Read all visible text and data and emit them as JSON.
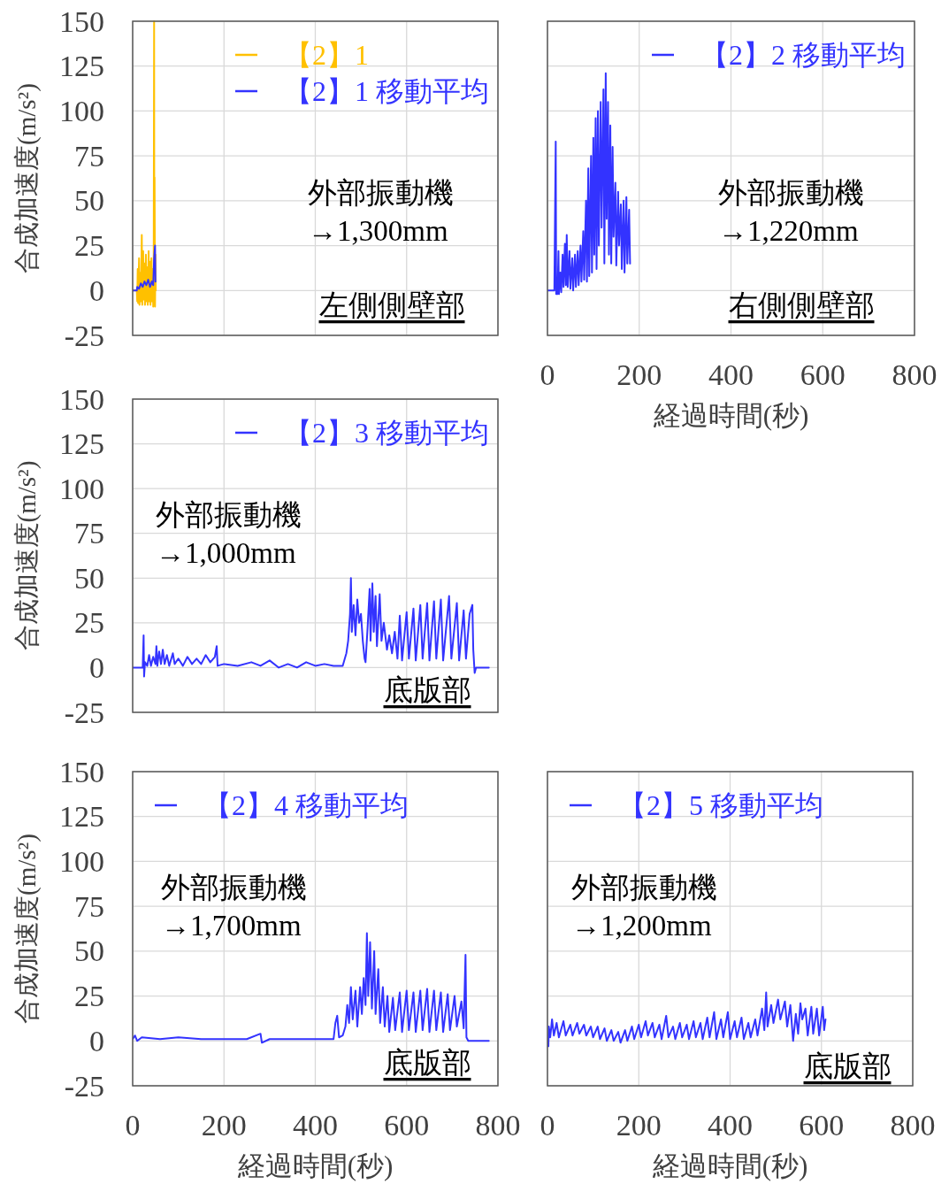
{
  "chart_data": [
    {
      "type": "line",
      "ylabel": "合成加速度(m/s²)",
      "xlim": [
        0,
        800
      ],
      "xticks": [
        0,
        200,
        400,
        600,
        800
      ],
      "ylim": [
        -25,
        150
      ],
      "yticks": [
        -25,
        0,
        25,
        50,
        75,
        100,
        125,
        150
      ],
      "grid": true,
      "legend": "top right",
      "tick_labels": "y",
      "annotations": [
        "外部振動機\n→1,300mm",
        "左側側壁部"
      ],
      "series": [
        {
          "name": "【2】1",
          "color": "#ffc000",
          "x": [
            0,
            9,
            10,
            11,
            12,
            14,
            15,
            17,
            18,
            20,
            21,
            23,
            24,
            26,
            27,
            29,
            30,
            32,
            33,
            35,
            36,
            38,
            39,
            41,
            42,
            44,
            45,
            46,
            47,
            47.5,
            48,
            49,
            50,
            50.5
          ],
          "values": [
            0,
            0,
            -6,
            12,
            -7,
            18,
            -8,
            10,
            -6,
            31,
            -8,
            22,
            -5,
            15,
            -8,
            20,
            -6,
            13,
            -8,
            22,
            -6,
            16,
            -8,
            18,
            -6,
            12,
            -9,
            8,
            150,
            -5,
            63,
            -9,
            20,
            0
          ]
        },
        {
          "name": "【2】1 移動平均",
          "color": "#3333ff",
          "x": [
            0,
            9,
            10,
            14,
            18,
            22,
            26,
            30,
            34,
            38,
            42,
            45,
            47,
            49,
            50
          ],
          "values": [
            0,
            0,
            2,
            1,
            4,
            2,
            5,
            3,
            6,
            2,
            5,
            3,
            18,
            25,
            5
          ]
        }
      ]
    },
    {
      "type": "line",
      "xlabel": "経過時間(秒)",
      "xlim": [
        0,
        800
      ],
      "xticks": [
        0,
        200,
        400,
        600,
        800
      ],
      "ylim": [
        -25,
        150
      ],
      "yticks": [
        -25,
        0,
        25,
        50,
        75,
        100,
        125,
        150
      ],
      "grid": true,
      "legend": "top right",
      "tick_labels": "x",
      "annotations": [
        "外部振動機\n→1,220mm",
        "右側側壁部"
      ],
      "series": [
        {
          "name": "【2】2 移動平均",
          "color": "#3333ff",
          "x": [
            0,
            15,
            18,
            19,
            22,
            24,
            25,
            28,
            30,
            33,
            35,
            38,
            40,
            42,
            44,
            48,
            50,
            54,
            56,
            60,
            62,
            66,
            68,
            72,
            74,
            78,
            80,
            84,
            86,
            89,
            91,
            95,
            97,
            100,
            102,
            105,
            107,
            110,
            112,
            116,
            118,
            122,
            124,
            127,
            129,
            132,
            134,
            137,
            139,
            142,
            144,
            148,
            150,
            154,
            156,
            160,
            162,
            166,
            168,
            172,
            174,
            178,
            180
          ],
          "values": [
            0,
            0,
            83,
            -2,
            -2,
            22,
            -2,
            10,
            -1,
            20,
            2,
            26,
            3,
            31,
            2,
            22,
            1,
            18,
            0,
            20,
            2,
            22,
            3,
            25,
            5,
            33,
            6,
            50,
            5,
            68,
            8,
            75,
            10,
            85,
            20,
            96,
            12,
            100,
            25,
            105,
            35,
            112,
            15,
            121,
            40,
            105,
            20,
            92,
            15,
            80,
            30,
            60,
            14,
            55,
            25,
            48,
            12,
            50,
            10,
            52,
            15,
            45,
            15
          ]
        }
      ]
    },
    {
      "type": "line",
      "ylabel": "合成加速度(m/s²)",
      "xlim": [
        0,
        800
      ],
      "xticks": [
        0,
        200,
        400,
        600,
        800
      ],
      "ylim": [
        -25,
        150
      ],
      "yticks": [
        -25,
        0,
        25,
        50,
        75,
        100,
        125,
        150
      ],
      "grid": true,
      "legend": "top right",
      "tick_labels": "y",
      "annotations": [
        "外部振動機\n→1,000mm",
        "底版部"
      ],
      "series": [
        {
          "name": "【2】3 移動平均",
          "color": "#3333ff",
          "x": [
            0,
            22,
            24,
            25,
            27,
            32,
            36,
            40,
            45,
            50,
            52,
            54,
            58,
            62,
            66,
            70,
            75,
            80,
            88,
            92,
            100,
            110,
            120,
            130,
            140,
            150,
            160,
            170,
            180,
            184,
            186,
            200,
            230,
            260,
            280,
            300,
            320,
            340,
            360,
            380,
            400,
            420,
            440,
            460,
            468,
            472,
            476,
            478,
            480,
            484,
            488,
            492,
            496,
            500,
            504,
            508,
            510,
            514,
            519,
            521,
            525,
            528,
            532,
            535,
            541,
            545,
            550,
            557,
            562,
            568,
            574,
            580,
            585,
            590,
            600,
            605,
            615,
            620,
            630,
            635,
            645,
            650,
            660,
            665,
            675,
            680,
            693,
            698,
            710,
            715,
            725,
            730,
            738,
            744,
            746,
            749,
            752,
            780
          ],
          "values": [
            0,
            0,
            18,
            -5,
            3,
            1,
            7,
            1,
            6,
            2,
            12,
            1,
            9,
            2,
            10,
            2,
            7,
            1,
            8,
            2,
            5,
            1,
            6,
            2,
            5,
            2,
            7,
            3,
            6,
            12,
            1,
            2,
            1,
            3,
            1,
            4,
            0,
            2,
            0,
            3,
            1,
            2,
            1,
            1,
            8,
            15,
            30,
            50,
            20,
            35,
            18,
            38,
            25,
            30,
            15,
            5,
            3,
            20,
            44,
            15,
            47,
            20,
            40,
            12,
            41,
            15,
            25,
            10,
            18,
            8,
            20,
            5,
            29,
            4,
            31,
            5,
            33,
            4,
            35,
            5,
            36,
            4,
            37,
            5,
            38,
            4,
            40,
            5,
            36,
            4,
            32,
            5,
            30,
            35,
            10,
            -3,
            0,
            0
          ]
        }
      ]
    },
    {
      "type": "line",
      "ylabel": "合成加速度(m/s²)",
      "xlabel": "経過時間(秒)",
      "xlim": [
        0,
        800
      ],
      "xticks": [
        0,
        200,
        400,
        600,
        800
      ],
      "ylim": [
        -25,
        150
      ],
      "yticks": [
        -25,
        0,
        25,
        50,
        75,
        100,
        125,
        150
      ],
      "grid": true,
      "legend": "top left",
      "annotations": [
        "外部振動機\n→1,700mm",
        "底版部"
      ],
      "series": [
        {
          "name": "【2】4 移動平均",
          "color": "#3333ff",
          "x": [
            0,
            5,
            10,
            20,
            60,
            100,
            150,
            200,
            250,
            280,
            283,
            300,
            350,
            400,
            440,
            444,
            448,
            452,
            460,
            466,
            470,
            474,
            478,
            482,
            488,
            492,
            498,
            502,
            506,
            510,
            513,
            516,
            520,
            524,
            529,
            532,
            538,
            542,
            548,
            552,
            558,
            562,
            570,
            575,
            585,
            590,
            600,
            605,
            615,
            620,
            630,
            635,
            645,
            650,
            660,
            665,
            675,
            680,
            690,
            695,
            705,
            710,
            720,
            725,
            729,
            731,
            735,
            780
          ],
          "values": [
            1,
            3,
            0,
            2,
            1,
            2,
            1,
            1,
            1,
            4,
            -1,
            1,
            1,
            1,
            1,
            10,
            14,
            2,
            3,
            8,
            20,
            10,
            30,
            12,
            28,
            8,
            30,
            15,
            35,
            20,
            60,
            25,
            55,
            18,
            50,
            15,
            40,
            10,
            30,
            8,
            25,
            5,
            24,
            6,
            27,
            5,
            28,
            6,
            27,
            5,
            28,
            6,
            29,
            5,
            28,
            6,
            27,
            5,
            26,
            6,
            25,
            8,
            22,
            7,
            48,
            2,
            0,
            0
          ]
        }
      ]
    },
    {
      "type": "line",
      "xlabel": "経過時間(秒)",
      "xlim": [
        0,
        800
      ],
      "xticks": [
        0,
        200,
        400,
        600,
        800
      ],
      "ylim": [
        -25,
        150
      ],
      "yticks": [
        -25,
        0,
        25,
        50,
        75,
        100,
        125,
        150
      ],
      "grid": true,
      "legend": "top left",
      "tick_labels": "x",
      "annotations": [
        "外部振動機\n→1,200mm",
        "底版部"
      ],
      "series": [
        {
          "name": "【2】5 移動平均",
          "color": "#3333ff",
          "x": [
            2,
            3,
            6,
            10,
            14,
            20,
            25,
            35,
            40,
            50,
            55,
            65,
            70,
            80,
            85,
            95,
            100,
            110,
            115,
            125,
            130,
            140,
            145,
            155,
            160,
            170,
            175,
            185,
            190,
            200,
            205,
            215,
            220,
            230,
            235,
            245,
            250,
            260,
            265,
            275,
            280,
            290,
            295,
            305,
            310,
            320,
            325,
            335,
            340,
            350,
            355,
            365,
            370,
            380,
            385,
            395,
            400,
            410,
            415,
            425,
            430,
            440,
            445,
            455,
            460,
            470,
            475,
            479,
            482,
            490,
            495,
            505,
            510,
            520,
            525,
            532,
            538,
            544,
            549,
            554,
            558,
            565,
            570,
            578,
            582,
            590,
            595,
            603,
            606,
            609
          ],
          "values": [
            -3,
            8,
            2,
            12,
            3,
            10,
            2,
            11,
            3,
            9,
            3,
            10,
            4,
            9,
            3,
            8,
            2,
            8,
            1,
            7,
            0,
            6,
            0,
            5,
            -1,
            6,
            0,
            8,
            1,
            9,
            2,
            11,
            3,
            10,
            2,
            9,
            1,
            14,
            2,
            8,
            1,
            10,
            2,
            9,
            1,
            11,
            2,
            10,
            1,
            13,
            2,
            16,
            1,
            12,
            2,
            16,
            1,
            11,
            2,
            13,
            1,
            10,
            2,
            12,
            3,
            18,
            6,
            27,
            8,
            20,
            10,
            23,
            12,
            22,
            8,
            20,
            0,
            15,
            4,
            21,
            12,
            18,
            3,
            19,
            4,
            18,
            3,
            19,
            6,
            12
          ]
        }
      ]
    }
  ]
}
